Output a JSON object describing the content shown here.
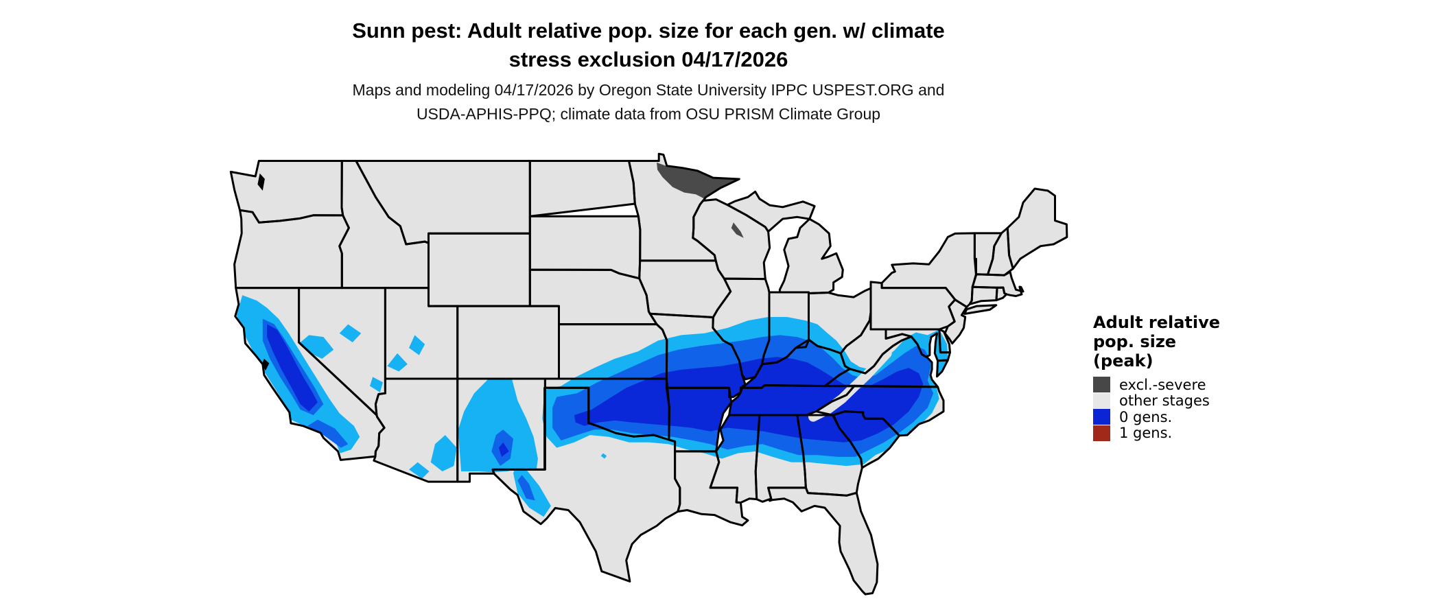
{
  "title": {
    "line1": "Sunn pest: Adult relative pop. size for each gen. w/ climate",
    "line2": "stress exclusion 04/17/2026"
  },
  "subtitle": {
    "line1": "Maps and modeling 04/17/2026 by Oregon State University IPPC USPEST.ORG and",
    "line2": "USDA-APHIS-PPQ; climate data from OSU PRISM Climate Group"
  },
  "legend": {
    "title_lines": [
      "Adult relative",
      "pop. size",
      "(peak)"
    ],
    "items": [
      {
        "label": "excl.-severe",
        "color": "#474747"
      },
      {
        "label": "other stages",
        "color": "#e7e7e7"
      },
      {
        "label": "0 gens.",
        "color": "#0b24d4"
      },
      {
        "label": "1 gens.",
        "color": "#a0291a"
      }
    ]
  },
  "map": {
    "region": "Conterminous United States with state borders",
    "base_color": "#e3e3e3",
    "border_color": "#000000",
    "background_color": "#ffffff",
    "shade_colors": {
      "zero_gens_low": "#17b2f3",
      "zero_gens_mid": "#1063e9",
      "zero_gens_high": "#0b28d8",
      "excl_severe": "#4a4a4a"
    },
    "regions": {
      "excl_severe": [
        "northern Minnesota border band and arrowhead",
        "small patch in north-central Wisconsin"
      ],
      "zero_gens": [
        "California Central Valley (darkest) with surrounding foothill and coastal ranges",
        "scattered highland patches in Nevada, Utah and southeastern Arizona",
        "central and southwestern New Mexico mountains",
        "Trans-Pecos west Texas ranges",
        "broad band from the Texas panhandle and Oklahoma across southern Kansas, Missouri, Arkansas",
        "southern Illinois, Indiana and Ohio through Kentucky and Tennessee",
        "northern Mississippi, Alabama and Georgia, the Carolinas, Virginia piedmont and Delmarva"
      ],
      "one_gens": [],
      "other_stages": [
        "remainder of the conterminous United States"
      ]
    }
  }
}
